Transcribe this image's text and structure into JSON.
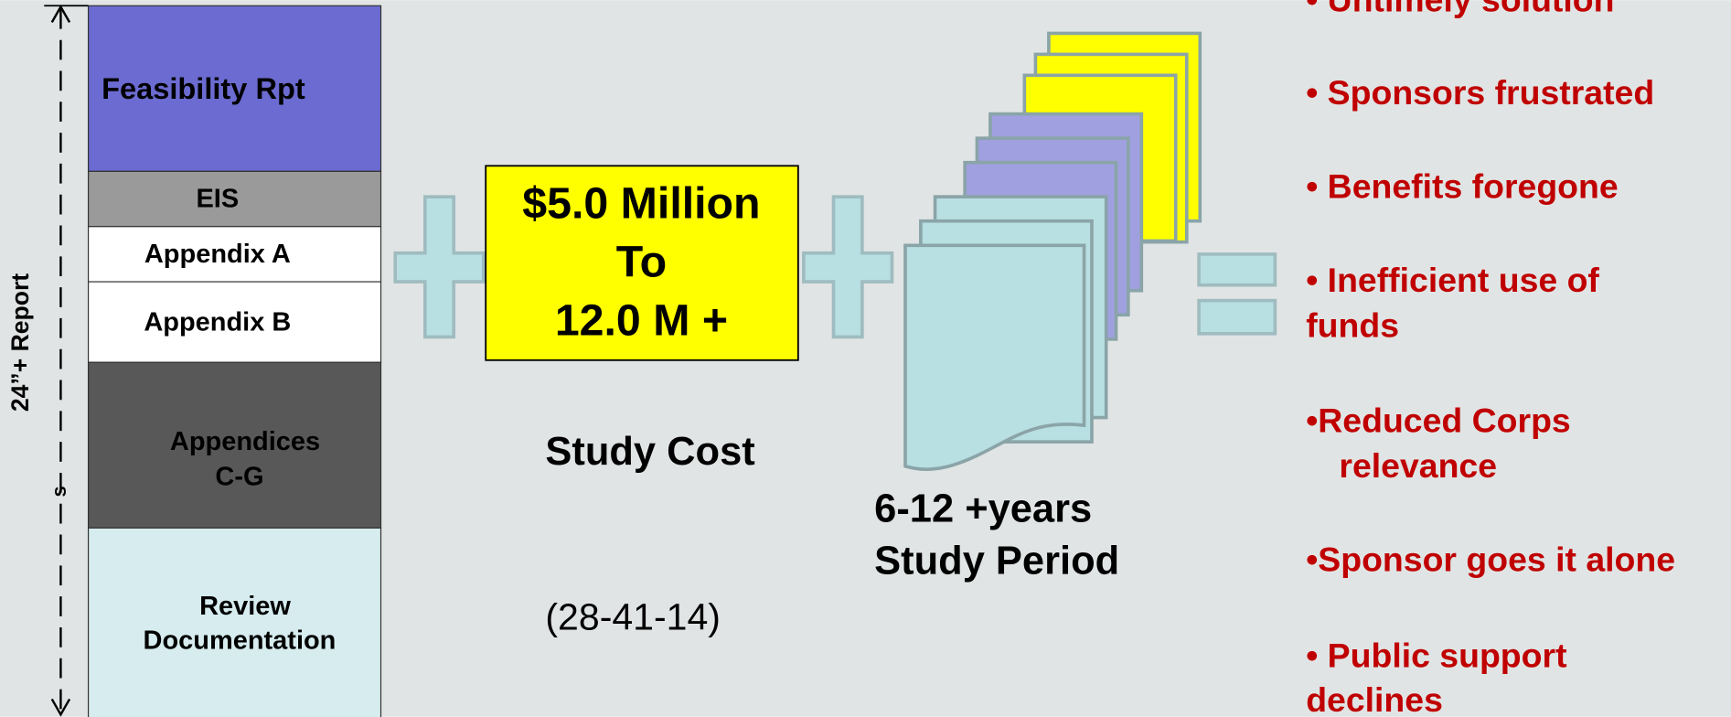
{
  "stack": {
    "label": "24”+ Report",
    "marker": "s",
    "sections": [
      {
        "lines": [
          "Feasibility Rpt"
        ]
      },
      {
        "lines": [
          "EIS"
        ]
      },
      {
        "lines": [
          "Appendix A"
        ]
      },
      {
        "lines": [
          "Appendix B"
        ]
      },
      {
        "lines": [
          "Appendices",
          "C-G"
        ]
      },
      {
        "lines": [
          "Review",
          "Documentation"
        ]
      }
    ]
  },
  "cost": {
    "lines": [
      "$5.0 Million",
      "To",
      "12.0 M +"
    ],
    "label": "Study Cost",
    "code": "(28-41-14)"
  },
  "period": {
    "lines": [
      "6-12 +years",
      "Study Period"
    ]
  },
  "outcomes": [
    [
      "• Untimely solution"
    ],
    [
      "• Sponsors frustrated"
    ],
    [
      "• Benefits foregone"
    ],
    [
      "• Inefficient use of",
      "funds"
    ],
    [
      "•Reduced Corps",
      "relevance"
    ],
    [
      "•Sponsor goes it alone"
    ],
    [
      "• Public support",
      "declines"
    ]
  ]
}
